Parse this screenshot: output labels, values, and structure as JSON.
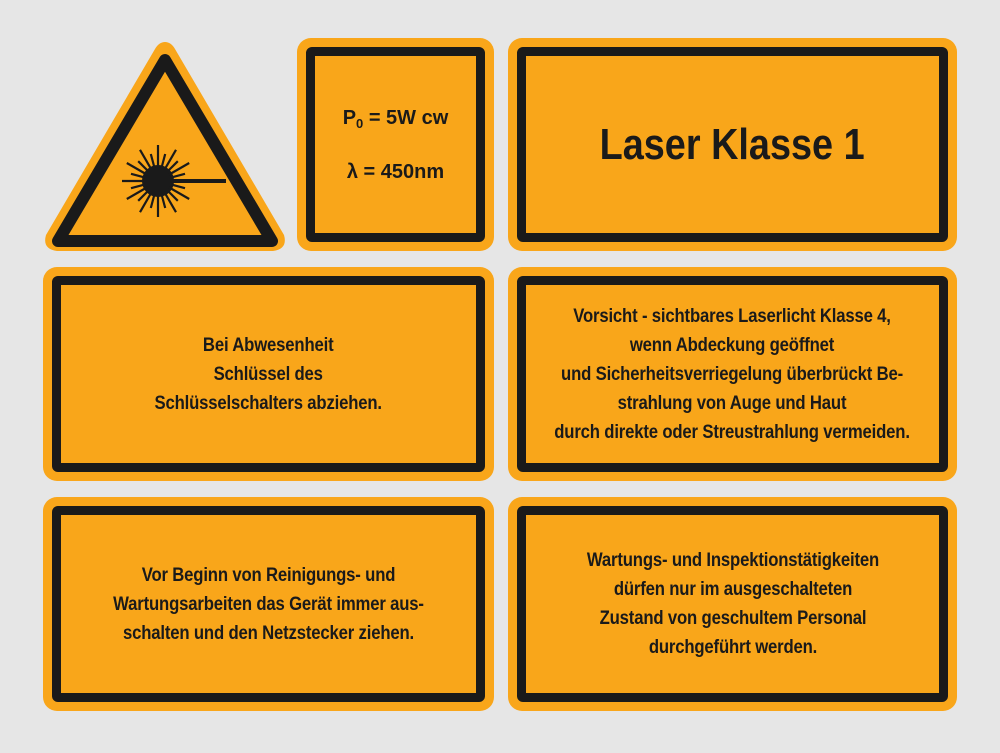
{
  "colors": {
    "background": "#e6e6e6",
    "sign_fill": "#f9a61a",
    "border": "#1a1a1a"
  },
  "warning_sign": {
    "icon": "laser-beam-icon"
  },
  "spec_sign": {
    "power_label": "P",
    "power_subscript": "0",
    "power_value": " = 5W cw",
    "wavelength": "λ = 450nm"
  },
  "class_sign": {
    "text": "Laser Klasse 1"
  },
  "key_sign": {
    "text": "Bei Abwesenheit\nSchlüssel des\nSchlüsselschalters abziehen."
  },
  "caution_sign": {
    "text": "Vorsicht - sichtbares Laserlicht Klasse 4,\nwenn Abdeckung geöffnet\nund Sicherheitsverriegelung überbrückt Be-\nstrahlung von Auge und Haut\ndurch direkte oder Streustrahlung vermeiden."
  },
  "cleaning_sign": {
    "text": "Vor Beginn von Reinigungs- und\nWartungsarbeiten das Gerät immer aus-\nschalten und den Netzstecker ziehen."
  },
  "maintenance_sign": {
    "text": "Wartungs- und Inspektionstätigkeiten\ndürfen nur im ausgeschalteten\nZustand von geschultem Personal\ndurchgeführt werden."
  }
}
